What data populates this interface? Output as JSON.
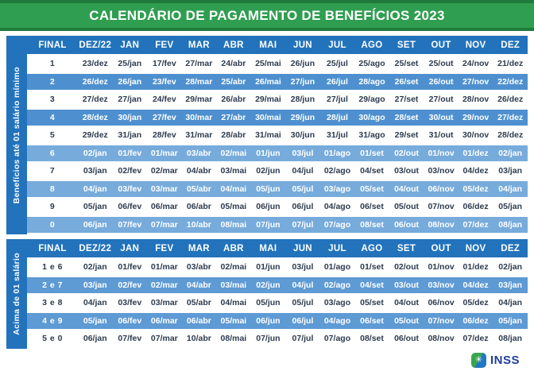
{
  "banner": {
    "title": "CALENDÁRIO DE PAGAMENTO DE BENEFÍCIOS 2023"
  },
  "columns": [
    "FINAL",
    "DEZ/22",
    "JAN",
    "FEV",
    "MAR",
    "ABR",
    "MAI",
    "JUN",
    "JUL",
    "AGO",
    "SET",
    "OUT",
    "NOV",
    "DEZ"
  ],
  "sections": [
    {
      "side_label": "Benefícios até 01 salário mínimo",
      "rows": [
        {
          "final": "1",
          "dates": [
            "23/dez",
            "25/jan",
            "17/fev",
            "27/mar",
            "24/abr",
            "25/mai",
            "26/jun",
            "25/jul",
            "25/ago",
            "25/set",
            "25/out",
            "24/nov",
            "21/dez"
          ]
        },
        {
          "final": "2",
          "dates": [
            "26/dez",
            "26/jan",
            "23/fev",
            "28/mar",
            "25/abr",
            "26/mai",
            "27/jun",
            "26/jul",
            "28/ago",
            "26/set",
            "26/out",
            "27/nov",
            "22/dez"
          ]
        },
        {
          "final": "3",
          "dates": [
            "27/dez",
            "27/jan",
            "24/fev",
            "29/mar",
            "26/abr",
            "29/mai",
            "28/jun",
            "27/jul",
            "29/ago",
            "27/set",
            "27/out",
            "28/nov",
            "26/dez"
          ]
        },
        {
          "final": "4",
          "dates": [
            "28/dez",
            "30/jan",
            "27/fev",
            "30/mar",
            "27/abr",
            "30/mai",
            "29/jun",
            "28/jul",
            "30/ago",
            "28/set",
            "30/out",
            "29/nov",
            "27/dez"
          ]
        },
        {
          "final": "5",
          "dates": [
            "29/dez",
            "31/jan",
            "28/fev",
            "31/mar",
            "28/abr",
            "31/mai",
            "30/jun",
            "31/jul",
            "31/ago",
            "29/set",
            "31/out",
            "30/nov",
            "28/dez"
          ]
        },
        {
          "final": "6",
          "dates": [
            "02/jan",
            "01/fev",
            "01/mar",
            "03/abr",
            "02/mai",
            "01/jun",
            "03/jul",
            "01/ago",
            "01/set",
            "02/out",
            "01/nov",
            "01/dez",
            "02/jan"
          ]
        },
        {
          "final": "7",
          "dates": [
            "03/jan",
            "02/fev",
            "02/mar",
            "04/abr",
            "03/mai",
            "02/jun",
            "04/jul",
            "02/ago",
            "04/set",
            "03/out",
            "03/nov",
            "04/dez",
            "03/jan"
          ]
        },
        {
          "final": "8",
          "dates": [
            "04/jan",
            "03/fev",
            "03/mar",
            "05/abr",
            "04/mai",
            "05/jun",
            "05/jul",
            "03/ago",
            "05/set",
            "04/out",
            "06/nov",
            "05/dez",
            "04/jan"
          ]
        },
        {
          "final": "9",
          "dates": [
            "05/jan",
            "06/fev",
            "06/mar",
            "06/abr",
            "05/mai",
            "06/jun",
            "06/jul",
            "04/ago",
            "06/set",
            "05/out",
            "07/nov",
            "06/dez",
            "05/jan"
          ]
        },
        {
          "final": "0",
          "dates": [
            "06/jan",
            "07/fev",
            "07/mar",
            "10/abr",
            "08/mai",
            "07/jun",
            "07/jul",
            "07/ago",
            "08/set",
            "06/out",
            "08/nov",
            "07/dez",
            "08/jan"
          ]
        }
      ]
    },
    {
      "side_label": "Acima de 01 salário",
      "rows": [
        {
          "final": "1 e 6",
          "dates": [
            "02/jan",
            "01/fev",
            "01/mar",
            "03/abr",
            "02/mai",
            "01/jun",
            "03/jul",
            "01/ago",
            "01/set",
            "02/out",
            "01/nov",
            "01/dez",
            "02/jan"
          ]
        },
        {
          "final": "2 e 7",
          "dates": [
            "03/jan",
            "02/fev",
            "02/mar",
            "04/abr",
            "03/mai",
            "02/jun",
            "04/jul",
            "02/ago",
            "04/set",
            "03/out",
            "03/nov",
            "04/dez",
            "03/jan"
          ]
        },
        {
          "final": "3 e 8",
          "dates": [
            "04/jan",
            "03/fev",
            "03/mar",
            "05/abr",
            "04/mai",
            "05/jun",
            "05/jul",
            "03/ago",
            "05/set",
            "04/out",
            "06/nov",
            "05/dez",
            "04/jan"
          ]
        },
        {
          "final": "4 e 9",
          "dates": [
            "05/jan",
            "06/fev",
            "06/mar",
            "06/abr",
            "05/mai",
            "06/jun",
            "06/jul",
            "04/ago",
            "06/set",
            "05/out",
            "07/nov",
            "06/dez",
            "05/jan"
          ]
        },
        {
          "final": "5 e 0",
          "dates": [
            "06/jan",
            "07/fev",
            "07/mar",
            "10/abr",
            "08/mai",
            "07/jun",
            "07/jul",
            "07/ago",
            "08/set",
            "06/out",
            "08/nov",
            "07/dez",
            "08/jan"
          ]
        }
      ]
    }
  ],
  "footer": {
    "logo_text": "INSS",
    "logo_icon_glyph": "✳"
  },
  "colors": {
    "banner_green": "#2F9E50",
    "banner_green_dark": "#207A3C",
    "header_blue": "#2273BC",
    "stripe_blue_medium": "#4E90CF",
    "stripe_blue_light": "#77ABDB",
    "stripe_blue_table2": "#5E9AD4",
    "logo_blue": "#1E3E9E",
    "logo_green": "#3AA64C"
  }
}
